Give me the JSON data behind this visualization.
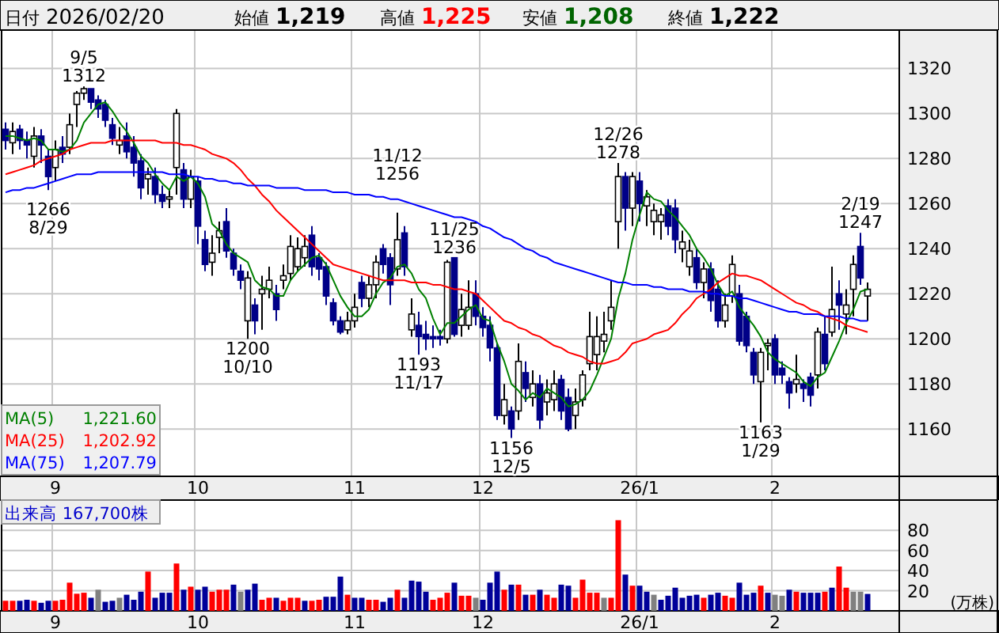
{
  "chart_data": [
    {
      "type": "candlestick",
      "categories": [
        null,
        null,
        null,
        null,
        null,
        null,
        null,
        "9",
        null,
        null,
        null,
        null,
        null,
        null,
        null,
        null,
        null,
        null,
        null,
        null,
        null,
        null,
        null,
        null,
        null,
        null,
        null,
        "10",
        null,
        null,
        null,
        null,
        null,
        null,
        null,
        null,
        null,
        null,
        null,
        null,
        null,
        null,
        null,
        null,
        null,
        null,
        null,
        null,
        null,
        "11",
        null,
        null,
        null,
        null,
        null,
        null,
        null,
        null,
        null,
        null,
        null,
        null,
        null,
        null,
        null,
        null,
        null,
        "12",
        null,
        null,
        null,
        null,
        null,
        null,
        null,
        null,
        null,
        null,
        null,
        null,
        null,
        null,
        null,
        null,
        null,
        null,
        null,
        null,
        null,
        "26/1",
        null,
        null,
        null,
        null,
        null,
        null,
        null,
        null,
        null,
        null,
        null,
        null,
        null,
        null,
        null,
        null,
        null,
        null,
        "2",
        null,
        null,
        null,
        null,
        null,
        null,
        null,
        null,
        null,
        null,
        null,
        null,
        null
      ],
      "ohlc": [
        [
          1293,
          1296,
          1284,
          1288
        ],
        [
          1287,
          1296,
          1282,
          1292
        ],
        [
          1293,
          1295,
          1284,
          1288
        ],
        [
          1288,
          1292,
          1280,
          1286
        ],
        [
          1281,
          1294,
          1276,
          1290
        ],
        [
          1290,
          1293,
          1278,
          1286
        ],
        [
          1281,
          1284,
          1266,
          1272
        ],
        [
          1276,
          1288,
          1270,
          1284
        ],
        [
          1285,
          1290,
          1278,
          1282
        ],
        [
          1285,
          1300,
          1282,
          1295
        ],
        [
          1304,
          1310,
          1294,
          1309
        ],
        [
          1309,
          1312,
          1306,
          1311
        ],
        [
          1311,
          1311,
          1302,
          1305
        ],
        [
          1306,
          1308,
          1298,
          1302
        ],
        [
          1304,
          1306,
          1294,
          1297
        ],
        [
          1295,
          1298,
          1286,
          1289
        ],
        [
          1286,
          1294,
          1282,
          1288
        ],
        [
          1290,
          1296,
          1280,
          1283
        ],
        [
          1285,
          1290,
          1272,
          1278
        ],
        [
          1279,
          1282,
          1262,
          1267
        ],
        [
          1271,
          1276,
          1264,
          1273
        ],
        [
          1272,
          1276,
          1260,
          1264
        ],
        [
          1264,
          1268,
          1258,
          1261
        ],
        [
          1262,
          1266,
          1258,
          1263
        ],
        [
          1276,
          1302,
          1264,
          1300
        ],
        [
          1275,
          1278,
          1258,
          1262
        ],
        [
          1262,
          1275,
          1258,
          1272
        ],
        [
          1270,
          1272,
          1242,
          1250
        ],
        [
          1244,
          1248,
          1230,
          1233
        ],
        [
          1234,
          1246,
          1228,
          1238
        ],
        [
          1245,
          1252,
          1238,
          1248
        ],
        [
          1252,
          1258,
          1236,
          1239
        ],
        [
          1238,
          1240,
          1228,
          1231
        ],
        [
          1230,
          1233,
          1222,
          1226
        ],
        [
          1208,
          1230,
          1200,
          1227
        ],
        [
          1215,
          1218,
          1202,
          1208
        ],
        [
          1220,
          1228,
          1204,
          1222
        ],
        [
          1222,
          1232,
          1218,
          1226
        ],
        [
          1220,
          1224,
          1208,
          1213
        ],
        [
          1226,
          1233,
          1222,
          1228
        ],
        [
          1229,
          1246,
          1226,
          1241
        ],
        [
          1232,
          1245,
          1230,
          1240
        ],
        [
          1236,
          1246,
          1232,
          1241
        ],
        [
          1246,
          1250,
          1228,
          1232
        ],
        [
          1236,
          1238,
          1226,
          1231
        ],
        [
          1232,
          1234,
          1215,
          1219
        ],
        [
          1216,
          1218,
          1206,
          1208
        ],
        [
          1208,
          1210,
          1202,
          1203
        ],
        [
          1204,
          1212,
          1202,
          1208
        ],
        [
          1208,
          1220,
          1205,
          1214
        ],
        [
          1225,
          1228,
          1214,
          1218
        ],
        [
          1218,
          1228,
          1214,
          1224
        ],
        [
          1224,
          1237,
          1218,
          1234
        ],
        [
          1240,
          1242,
          1229,
          1233
        ],
        [
          1236,
          1238,
          1215,
          1224
        ],
        [
          1231,
          1256,
          1228,
          1244
        ],
        [
          1247,
          1250,
          1228,
          1232
        ],
        [
          1204,
          1218,
          1201,
          1211
        ],
        [
          1206,
          1212,
          1193,
          1201
        ],
        [
          1202,
          1208,
          1195,
          1200
        ],
        [
          1201,
          1206,
          1196,
          1200
        ],
        [
          1201,
          1204,
          1197,
          1200
        ],
        [
          1200,
          1235,
          1198,
          1234
        ],
        [
          1236,
          1236,
          1201,
          1202
        ],
        [
          1206,
          1220,
          1201,
          1213
        ],
        [
          1206,
          1226,
          1204,
          1214
        ],
        [
          1220,
          1226,
          1206,
          1210
        ],
        [
          1210,
          1214,
          1201,
          1205
        ],
        [
          1206,
          1210,
          1190,
          1196
        ],
        [
          1196,
          1198,
          1164,
          1166
        ],
        [
          1166,
          1180,
          1162,
          1173
        ],
        [
          1168,
          1170,
          1156,
          1160
        ],
        [
          1168,
          1198,
          1164,
          1190
        ],
        [
          1185,
          1190,
          1172,
          1178
        ],
        [
          1174,
          1186,
          1170,
          1180
        ],
        [
          1180,
          1184,
          1160,
          1164
        ],
        [
          1172,
          1182,
          1166,
          1176
        ],
        [
          1173,
          1186,
          1168,
          1180
        ],
        [
          1182,
          1184,
          1164,
          1168
        ],
        [
          1174,
          1178,
          1159,
          1160
        ],
        [
          1166,
          1178,
          1160,
          1172
        ],
        [
          1173,
          1186,
          1170,
          1184
        ],
        [
          1189,
          1212,
          1186,
          1201
        ],
        [
          1193,
          1210,
          1186,
          1201
        ],
        [
          1199,
          1212,
          1194,
          1202
        ],
        [
          1208,
          1226,
          1204,
          1214
        ],
        [
          1252,
          1278,
          1240,
          1272
        ],
        [
          1272,
          1274,
          1248,
          1258
        ],
        [
          1258,
          1274,
          1250,
          1272
        ],
        [
          1270,
          1274,
          1252,
          1260
        ],
        [
          1259,
          1266,
          1250,
          1263
        ],
        [
          1252,
          1260,
          1246,
          1257
        ],
        [
          1252,
          1258,
          1244,
          1255
        ],
        [
          1259,
          1262,
          1246,
          1250
        ],
        [
          1258,
          1262,
          1238,
          1244
        ],
        [
          1240,
          1248,
          1234,
          1243
        ],
        [
          1232,
          1244,
          1228,
          1239
        ],
        [
          1236,
          1240,
          1222,
          1225
        ],
        [
          1225,
          1234,
          1218,
          1231
        ],
        [
          1231,
          1234,
          1212,
          1217
        ],
        [
          1222,
          1226,
          1205,
          1208
        ],
        [
          1208,
          1220,
          1205,
          1215
        ],
        [
          1219,
          1237,
          1216,
          1233
        ],
        [
          1220,
          1224,
          1197,
          1199
        ],
        [
          1210,
          1212,
          1194,
          1197
        ],
        [
          1194,
          1196,
          1180,
          1184
        ],
        [
          1181,
          1196,
          1163,
          1194
        ],
        [
          1197,
          1200,
          1186,
          1198
        ],
        [
          1200,
          1202,
          1180,
          1184
        ],
        [
          1187,
          1190,
          1180,
          1184
        ],
        [
          1181,
          1183,
          1169,
          1176
        ],
        [
          1180,
          1193,
          1176,
          1182
        ],
        [
          1180,
          1182,
          1172,
          1178
        ],
        [
          1183,
          1185,
          1170,
          1175
        ],
        [
          1184,
          1205,
          1178,
          1203
        ],
        [
          1202,
          1210,
          1186,
          1189
        ],
        [
          1203,
          1232,
          1201,
          1213
        ],
        [
          1220,
          1226,
          1204,
          1215
        ],
        [
          1211,
          1222,
          1202,
          1215
        ],
        [
          1222,
          1237,
          1210,
          1233
        ],
        [
          1241,
          1247,
          1224,
          1227
        ],
        [
          1219,
          1225,
          1208,
          1222
        ]
      ],
      "series": [
        {
          "name": "MA(5)",
          "type": "line",
          "color": "#008000",
          "values": [
            1290,
            1290,
            1289,
            1288,
            1289,
            1288,
            1284,
            1284,
            1283,
            1284,
            1288,
            1296,
            1300,
            1304,
            1305,
            1301,
            1296,
            1292,
            1287,
            1281,
            1278,
            1273,
            1269,
            1266,
            1272,
            1270,
            1272,
            1269,
            1263,
            1251,
            1248,
            1242,
            1238,
            1236,
            1234,
            1226,
            1223,
            1222,
            1219,
            1219,
            1226,
            1230,
            1233,
            1236,
            1237,
            1233,
            1226,
            1219,
            1214,
            1210,
            1210,
            1213,
            1220,
            1225,
            1227,
            1232,
            1233,
            1229,
            1222,
            1218,
            1209,
            1202,
            1207,
            1207,
            1210,
            1213,
            1215,
            1209,
            1208,
            1198,
            1190,
            1180,
            1177,
            1173,
            1176,
            1174,
            1178,
            1176,
            1174,
            1170,
            1171,
            1173,
            1177,
            1184,
            1192,
            1200,
            1218,
            1229,
            1244,
            1255,
            1265,
            1262,
            1261,
            1257,
            1254,
            1250,
            1246,
            1240,
            1236,
            1231,
            1224,
            1219,
            1221,
            1214,
            1210,
            1206,
            1201,
            1194,
            1191,
            1189,
            1187,
            1185,
            1181,
            1179,
            1183,
            1185,
            1192,
            1199,
            1207,
            1213,
            1221,
            1222
          ]
        },
        {
          "name": "MA(25)",
          "type": "line",
          "color": "#ff0000",
          "values": [
            1273,
            1274,
            1275,
            1276,
            1277,
            1279,
            1280,
            1281,
            1282,
            1284,
            1285,
            1286,
            1287,
            1287,
            1287,
            1288,
            1288,
            1288,
            1288,
            1288,
            1288,
            1288,
            1287,
            1287,
            1287,
            1286,
            1286,
            1285,
            1284,
            1282,
            1281,
            1280,
            1278,
            1275,
            1271,
            1268,
            1264,
            1261,
            1257,
            1254,
            1251,
            1248,
            1245,
            1242,
            1239,
            1236,
            1233,
            1232,
            1231,
            1230,
            1229,
            1228,
            1227,
            1226,
            1226,
            1226,
            1226,
            1225,
            1225,
            1225,
            1224,
            1224,
            1223,
            1222,
            1222,
            1221,
            1220,
            1217,
            1214,
            1211,
            1208,
            1207,
            1205,
            1204,
            1202,
            1201,
            1199,
            1197,
            1196,
            1194,
            1193,
            1192,
            1190,
            1189,
            1189,
            1190,
            1191,
            1194,
            1198,
            1199,
            1200,
            1202,
            1203,
            1204,
            1207,
            1211,
            1214,
            1218,
            1220,
            1222,
            1225,
            1227,
            1229,
            1228,
            1228,
            1227,
            1226,
            1224,
            1222,
            1220,
            1218,
            1216,
            1215,
            1213,
            1212,
            1210,
            1209,
            1208,
            1206,
            1205,
            1204,
            1203
          ]
        },
        {
          "name": "MA(75)",
          "type": "line",
          "color": "#0000ff",
          "values": [
            1265,
            1266,
            1266,
            1267,
            1267,
            1268,
            1269,
            1270,
            1271,
            1272,
            1273,
            1273,
            1273,
            1274,
            1274,
            1274,
            1274,
            1274,
            1274,
            1274,
            1274,
            1274,
            1274,
            1273,
            1273,
            1273,
            1272,
            1272,
            1271,
            1271,
            1270,
            1270,
            1269,
            1269,
            1268,
            1268,
            1268,
            1268,
            1267,
            1267,
            1267,
            1267,
            1266,
            1266,
            1266,
            1266,
            1265,
            1265,
            1265,
            1264,
            1264,
            1264,
            1263,
            1263,
            1262,
            1262,
            1261,
            1260,
            1259,
            1258,
            1257,
            1256,
            1255,
            1254,
            1254,
            1253,
            1252,
            1250,
            1249,
            1247,
            1245,
            1244,
            1242,
            1240,
            1239,
            1237,
            1236,
            1234,
            1233,
            1232,
            1231,
            1230,
            1229,
            1228,
            1227,
            1226,
            1225,
            1225,
            1224,
            1224,
            1224,
            1223,
            1223,
            1222,
            1222,
            1222,
            1221,
            1221,
            1221,
            1220,
            1220,
            1219,
            1219,
            1218,
            1218,
            1217,
            1216,
            1215,
            1214,
            1213,
            1212,
            1212,
            1211,
            1211,
            1211,
            1210,
            1210,
            1210,
            1209,
            1209,
            1208,
            1208
          ]
        }
      ],
      "ylim": [
        1139,
        1337
      ],
      "yticks": [
        1160,
        1180,
        1200,
        1220,
        1240,
        1260,
        1280,
        1300,
        1320
      ],
      "grid": true,
      "legend": "bottom left",
      "annotations": [
        "日付 2026/02/20",
        "始値 1,219",
        "高値 1,225",
        "安値 1,208",
        "終値 1,222",
        {
          "text": "1266\n8/29",
          "y": 1266
        },
        {
          "text": "9/5\n1312",
          "y": 1312
        },
        {
          "text": "1200\n10/10",
          "y": 1200
        },
        {
          "text": "11/12\n1256",
          "y": 1256
        },
        {
          "text": "1193\n11/17",
          "y": 1193
        },
        {
          "text": "11/25\n1236",
          "y": 1236
        },
        {
          "text": "1156\n12/5",
          "y": 1156
        },
        {
          "text": "12/26\n1278",
          "y": 1278
        },
        {
          "text": "1163\n1/29",
          "y": 1163
        },
        {
          "text": "2/19\n1247",
          "y": 1247
        },
        "1,221.60",
        "1,202.92",
        "1,207.79"
      ]
    },
    {
      "type": "bar",
      "title": "出来高 167,700株",
      "ylabel": "(万株)",
      "categories": [
        null,
        null,
        null,
        null,
        null,
        null,
        null,
        "9",
        null,
        null,
        null,
        null,
        null,
        null,
        null,
        null,
        null,
        null,
        null,
        null,
        null,
        null,
        null,
        null,
        null,
        null,
        null,
        "10",
        null,
        null,
        null,
        null,
        null,
        null,
        null,
        null,
        null,
        null,
        null,
        null,
        null,
        null,
        null,
        null,
        null,
        null,
        null,
        null,
        null,
        "11",
        null,
        null,
        null,
        null,
        null,
        null,
        null,
        null,
        null,
        null,
        null,
        null,
        null,
        null,
        null,
        null,
        null,
        "12",
        null,
        null,
        null,
        null,
        null,
        null,
        null,
        null,
        null,
        null,
        null,
        null,
        null,
        null,
        null,
        null,
        null,
        null,
        null,
        null,
        null,
        "26/1",
        null,
        null,
        null,
        null,
        null,
        null,
        null,
        null,
        null,
        null,
        null,
        null,
        null,
        null,
        null,
        null,
        null,
        null,
        "2",
        null,
        null,
        null,
        null,
        null,
        null,
        null,
        null,
        null,
        null,
        null,
        null,
        null
      ],
      "values": [
        10,
        10,
        10,
        11,
        10,
        8,
        10,
        10,
        11,
        28,
        17,
        18,
        13,
        21,
        9,
        10,
        13,
        16,
        11,
        19,
        39,
        13,
        18,
        18,
        47,
        21,
        24,
        21,
        24,
        19,
        21,
        21,
        26,
        19,
        21,
        27,
        11,
        13,
        13,
        10,
        13,
        13,
        10,
        10,
        11,
        14,
        14,
        34,
        16,
        13,
        13,
        11,
        11,
        9,
        13,
        21,
        13,
        30,
        29,
        19,
        11,
        13,
        18,
        28,
        15,
        15,
        13,
        11,
        28,
        39,
        21,
        26,
        26,
        16,
        16,
        21,
        16,
        13,
        26,
        25,
        13,
        31,
        18,
        18,
        13,
        13,
        90,
        36,
        25,
        25,
        19,
        16,
        11,
        15,
        23,
        13,
        15,
        16,
        13,
        16,
        18,
        15,
        13,
        28,
        16,
        18,
        25,
        18,
        16,
        15,
        21,
        19,
        18,
        18,
        18,
        19,
        23,
        44,
        23,
        19,
        19,
        16.8
      ],
      "colors": [
        "#ff0000",
        "#ff0000",
        "#000099",
        "#000099",
        "#ff0000",
        "#000099",
        "#000099",
        "#ff0000",
        "#ff0000",
        "#ff0000",
        "#ff0000",
        "#ff0000",
        "#000099",
        "#808080",
        "#000099",
        "#000099",
        "#808080",
        "#000099",
        "#000099",
        "#000099",
        "#ff0000",
        "#000099",
        "#000099",
        "#000099",
        "#ff0000",
        "#000099",
        "#ff0000",
        "#000099",
        "#000099",
        "#ff0000",
        "#ff0000",
        "#ff0000",
        "#000099",
        "#808080",
        "#000099",
        "#000099",
        "#ff0000",
        "#ff0000",
        "#000099",
        "#ff0000",
        "#ff0000",
        "#ff0000",
        "#000099",
        "#ff0000",
        "#ff0000",
        "#000099",
        "#000099",
        "#000099",
        "#ff0000",
        "#000099",
        "#000099",
        "#ff0000",
        "#ff0000",
        "#000099",
        "#000099",
        "#ff0000",
        "#000099",
        "#000099",
        "#000099",
        "#000099",
        "#ff0000",
        "#ff0000",
        "#ff0000",
        "#000099",
        "#ff0000",
        "#ff0000",
        "#808080",
        "#000099",
        "#000099",
        "#000099",
        "#ff0000",
        "#000099",
        "#ff0000",
        "#000099",
        "#ff0000",
        "#000099",
        "#ff0000",
        "#ff0000",
        "#000099",
        "#000099",
        "#ff0000",
        "#ff0000",
        "#ff0000",
        "#ff0000",
        "#808080",
        "#ff0000",
        "#ff0000",
        "#000099",
        "#ff0000",
        "#000099",
        "#000099",
        "#808080",
        "#000099",
        "#000099",
        "#000099",
        "#000099",
        "#000099",
        "#000099",
        "#ff0000",
        "#000099",
        "#000099",
        "#ff0000",
        "#ff0000",
        "#000099",
        "#000099",
        "#000099",
        "#ff0000",
        "#000099",
        "#808080",
        "#808080",
        "#000099",
        "#ff0000",
        "#000099",
        "#000099",
        "#000099",
        "#ff0000",
        "#000099",
        "#ff0000",
        "#ff0000",
        "#808080",
        "#808080",
        "#000099"
      ],
      "ylim": [
        0,
        110
      ],
      "yticks": [
        20,
        40,
        60,
        80
      ],
      "grid": true
    }
  ]
}
